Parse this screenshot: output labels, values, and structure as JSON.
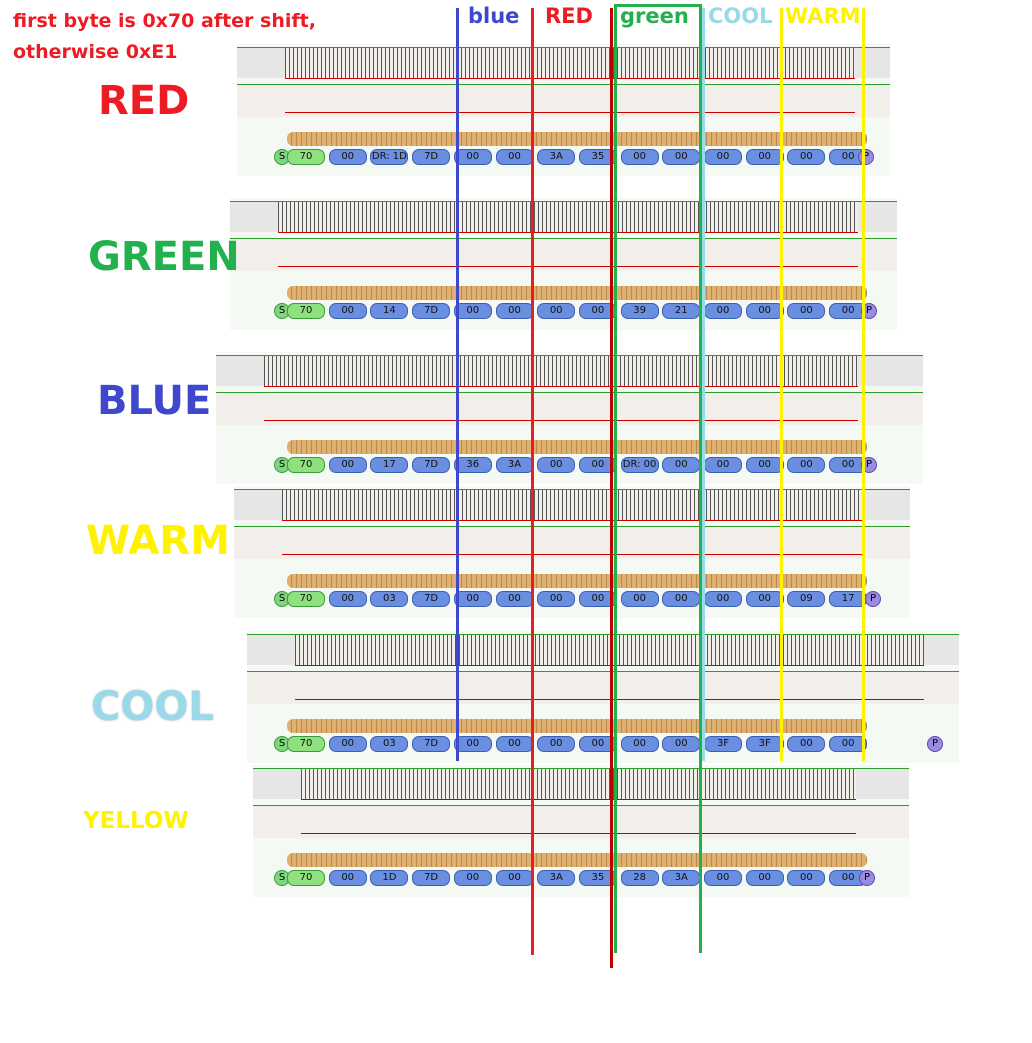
{
  "note": [
    "first byte is 0x70 after shift,",
    "otherwise 0xE1"
  ],
  "columns": [
    {
      "label": "blue",
      "color": "#3f48cc"
    },
    {
      "label": "RED",
      "color": "#ed1c24"
    },
    {
      "label": "green",
      "color": "#22b14c"
    },
    {
      "label": "COOL",
      "color": "#99d9ea"
    },
    {
      "label": "WARM",
      "color": "#fff200"
    }
  ],
  "captures": [
    {
      "label": "RED",
      "color": "#ed1c24",
      "start": "S",
      "end": "P",
      "bytes": [
        "70",
        "00",
        "DR: 1D",
        "7D",
        "00",
        "00",
        "3A",
        "35",
        "00",
        "00",
        "00",
        "00",
        "00",
        "00"
      ]
    },
    {
      "label": "GREEN",
      "color": "#22b14c",
      "start": "S",
      "end": "P",
      "bytes": [
        "70",
        "00",
        "14",
        "7D",
        "00",
        "00",
        "00",
        "00",
        "39",
        "21",
        "00",
        "00",
        "00",
        "00"
      ]
    },
    {
      "label": "BLUE",
      "color": "#3f48cc",
      "start": "S",
      "end": "P",
      "bytes": [
        "70",
        "00",
        "17",
        "7D",
        "36",
        "3A",
        "00",
        "00",
        "DR: 00",
        "00",
        "00",
        "00",
        "00",
        "00"
      ]
    },
    {
      "label": "WARM",
      "color": "#fff200",
      "start": "S",
      "end": "P",
      "bytes": [
        "70",
        "00",
        "03",
        "7D",
        "00",
        "00",
        "00",
        "00",
        "00",
        "00",
        "00",
        "00",
        "09",
        "17"
      ]
    },
    {
      "label": "COOL",
      "color": "#99d9ea",
      "start": "S",
      "end": "P",
      "bytes": [
        "70",
        "00",
        "03",
        "7D",
        "00",
        "00",
        "00",
        "00",
        "00",
        "00",
        "3F",
        "3F",
        "00",
        "00"
      ]
    },
    {
      "label": "YELLOW",
      "color": "#fff200",
      "start": "S",
      "end": "P",
      "bytes": [
        "70",
        "00",
        "1D",
        "7D",
        "00",
        "00",
        "3A",
        "35",
        "28",
        "3A",
        "00",
        "00",
        "00",
        "00"
      ]
    }
  ]
}
